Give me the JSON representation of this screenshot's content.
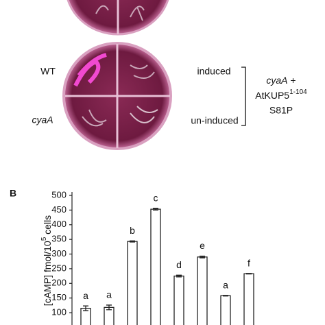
{
  "panel_a": {
    "wt": "WT",
    "mutant": "cyaA",
    "induced": "induced",
    "uninduced": "un-induced",
    "strain_line1_italic": "cyaA",
    "strain_line1_rest": "+",
    "strain_line2": "AtKUP5",
    "strain_line2_sup": "1-104",
    "strain_line3": "S81P"
  },
  "chart_data": {
    "type": "bar",
    "panel_label": "B",
    "y_label_main": "[cAMP] fmol/10",
    "y_label_sup": "5",
    "y_label_tail": " cells",
    "values": [
      115,
      118,
      343,
      453,
      225,
      290,
      158,
      233
    ],
    "errors": [
      8,
      8,
      2,
      3,
      3,
      3,
      1,
      1
    ],
    "group_labels": [
      "a",
      "a",
      "b",
      "c",
      "d",
      "e",
      "a",
      "f"
    ],
    "color": "#ffffff",
    "edge_color": "#222222",
    "ylim": [
      58,
      500
    ],
    "yticks": [
      100,
      150,
      200,
      250,
      300,
      350,
      400,
      450,
      500
    ]
  }
}
